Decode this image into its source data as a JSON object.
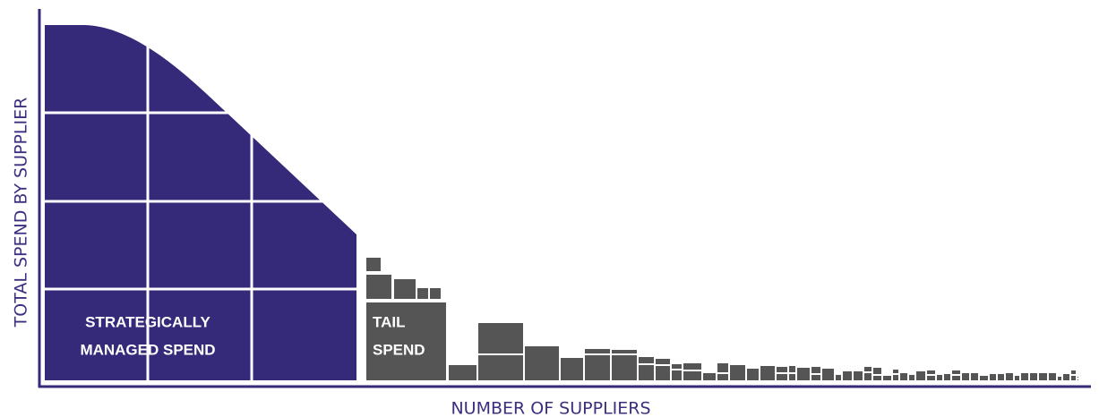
{
  "axes": {
    "y_label": "TOTAL SPEND BY SUPPLIER",
    "x_label": "NUMBER OF SUPPLIERS"
  },
  "regions": [
    {
      "label_lines": [
        "STRATEGICALLY",
        "MANAGED SPEND"
      ]
    },
    {
      "label_lines": [
        "TAIL",
        "SPEND"
      ]
    }
  ]
}
